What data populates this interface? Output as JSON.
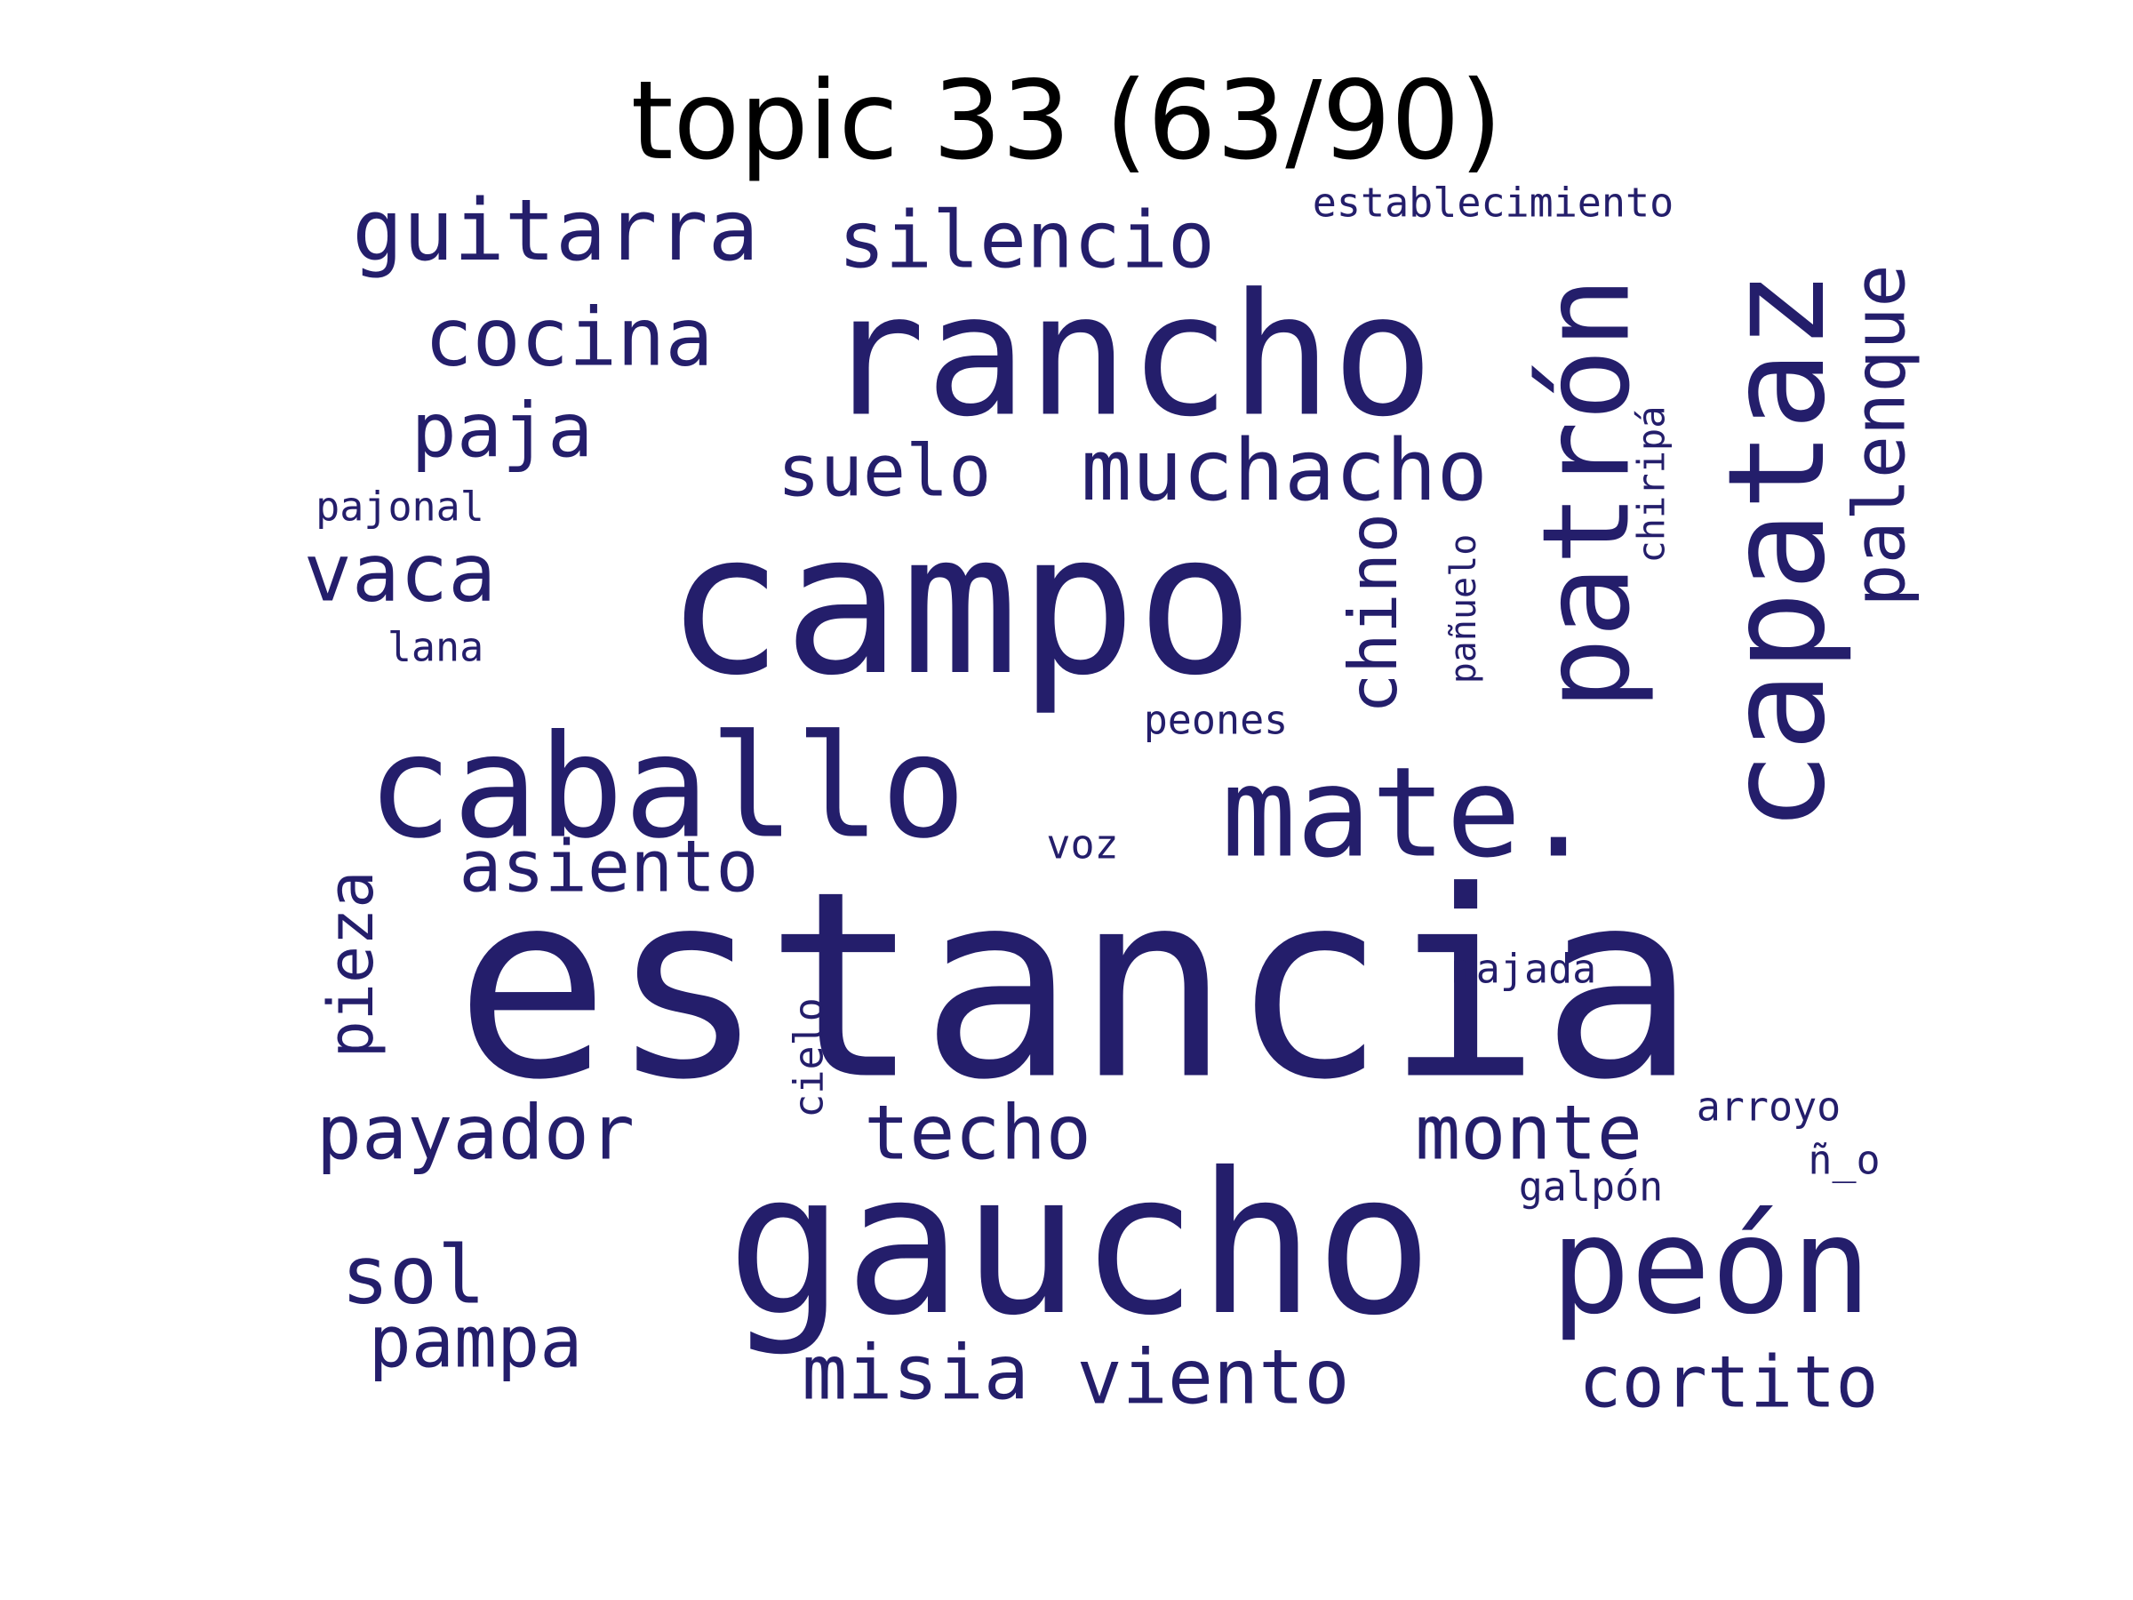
{
  "title": "topic 33 (63/90)",
  "word_color": "#241e6b",
  "words": [
    {
      "text": "estancia",
      "orientation": "horizontal"
    },
    {
      "text": "gaucho",
      "orientation": "horizontal"
    },
    {
      "text": "campo",
      "orientation": "horizontal"
    },
    {
      "text": "rancho",
      "orientation": "horizontal"
    },
    {
      "text": "caballo",
      "orientation": "horizontal"
    },
    {
      "text": "peón",
      "orientation": "horizontal"
    },
    {
      "text": "mate.",
      "orientation": "horizontal"
    },
    {
      "text": "capataz",
      "orientation": "vertical"
    },
    {
      "text": "patrón",
      "orientation": "vertical"
    },
    {
      "text": "guitarra",
      "orientation": "horizontal"
    },
    {
      "text": "muchacho",
      "orientation": "horizontal"
    },
    {
      "text": "silencio",
      "orientation": "horizontal"
    },
    {
      "text": "cocina",
      "orientation": "horizontal"
    },
    {
      "text": "palenque",
      "orientation": "vertical"
    },
    {
      "text": "payador",
      "orientation": "horizontal"
    },
    {
      "text": "monte",
      "orientation": "horizontal"
    },
    {
      "text": "misia",
      "orientation": "horizontal"
    },
    {
      "text": "viento",
      "orientation": "horizontal"
    },
    {
      "text": "cortito",
      "orientation": "horizontal"
    },
    {
      "text": "techo",
      "orientation": "horizontal"
    },
    {
      "text": "pampa",
      "orientation": "horizontal"
    },
    {
      "text": "paja",
      "orientation": "horizontal"
    },
    {
      "text": "vaca",
      "orientation": "horizontal"
    },
    {
      "text": "asiento",
      "orientation": "horizontal"
    },
    {
      "text": "suelo",
      "orientation": "horizontal"
    },
    {
      "text": "pieza",
      "orientation": "vertical"
    },
    {
      "text": "chino",
      "orientation": "vertical"
    },
    {
      "text": "sol",
      "orientation": "horizontal"
    },
    {
      "text": "establecimiento",
      "orientation": "horizontal"
    },
    {
      "text": "chiripá",
      "orientation": "vertical"
    },
    {
      "text": "pañuelo",
      "orientation": "vertical"
    },
    {
      "text": "pajonal",
      "orientation": "horizontal"
    },
    {
      "text": "lana",
      "orientation": "horizontal"
    },
    {
      "text": "peones",
      "orientation": "horizontal"
    },
    {
      "text": "voz",
      "orientation": "horizontal"
    },
    {
      "text": "majada",
      "orientation": "horizontal"
    },
    {
      "text": "cielo",
      "orientation": "vertical"
    },
    {
      "text": "arroyo",
      "orientation": "horizontal"
    },
    {
      "text": "ñ_o",
      "orientation": "horizontal"
    },
    {
      "text": "galpón",
      "orientation": "horizontal"
    }
  ]
}
